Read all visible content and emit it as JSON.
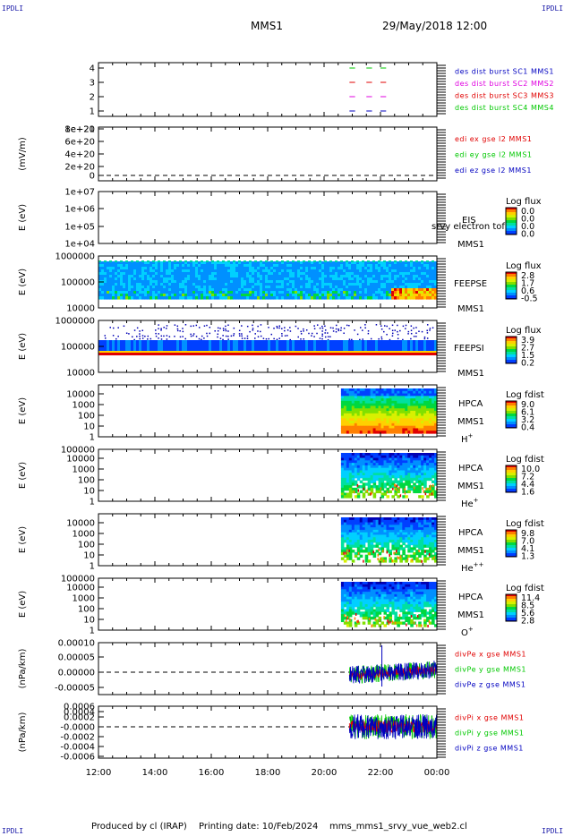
{
  "corner_label": "IPDLI",
  "header": {
    "spacecraft": "MMS1",
    "date": "29/May/2018 12:00"
  },
  "footer": {
    "produced_by": "Produced by cl (IRAP)",
    "printing_date": "Printing date: 10/Feb/2024",
    "product": "mms_mms1_srvy_vue_web2.cl"
  },
  "colors": {
    "red": "#e00000",
    "green": "#00c800",
    "blue": "#0000c0",
    "magenta": "#e000e0",
    "black": "#000000"
  },
  "chart_data": [
    {
      "type": "line",
      "panel": "dist_burst",
      "ylabel": "",
      "y_ticks": [
        "1",
        "2",
        "3",
        "4"
      ],
      "ylim": [
        0.5,
        4.5
      ],
      "legend": [
        {
          "text": "des dist burst SC1 MMS1",
          "color": "#0000c0"
        },
        {
          "text": "des dist burst SC2 MMS2",
          "color": "#e000e0"
        },
        {
          "text": "des dist burst SC3 MMS3",
          "color": "#e00000"
        },
        {
          "text": "des dist burst SC4 MMS4",
          "color": "#00c800"
        }
      ],
      "series": [
        {
          "name": "SC1 MMS1",
          "y": 1,
          "color": "#0000c0",
          "segments": [
            [
              20.9,
              21.1
            ],
            [
              21.5,
              21.7
            ],
            [
              22.0,
              22.2
            ]
          ]
        },
        {
          "name": "SC2 MMS2",
          "y": 2,
          "color": "#e000e0",
          "segments": [
            [
              20.9,
              21.1
            ],
            [
              21.5,
              21.7
            ],
            [
              22.0,
              22.2
            ]
          ]
        },
        {
          "name": "SC3 MMS3",
          "y": 3,
          "color": "#e00000",
          "segments": [
            [
              20.9,
              21.1
            ],
            [
              21.5,
              21.7
            ],
            [
              22.0,
              22.2
            ]
          ]
        },
        {
          "name": "SC4 MMS4",
          "y": 4,
          "color": "#00c800",
          "segments": [
            [
              20.9,
              21.1
            ],
            [
              21.5,
              21.7
            ],
            [
              22.0,
              22.2
            ]
          ]
        }
      ]
    },
    {
      "type": "line",
      "panel": "edi",
      "ylabel": "(mV/m)",
      "y_ticks": [
        "0",
        "2e+20",
        "4e+20",
        "6e+20",
        "8e+20",
        "1e+21"
      ],
      "ylim": [
        0,
        1e+21
      ],
      "legend": [
        {
          "text": "edi ex gse l2 MMS1",
          "color": "#e00000"
        },
        {
          "text": "edi ey gse l2 MMS1",
          "color": "#00c800"
        },
        {
          "text": "edi ez gse l2 MMS1",
          "color": "#0000c0"
        }
      ],
      "zero_line": true
    },
    {
      "type": "heatmap",
      "panel": "eis",
      "ylabel": "E (eV)",
      "y_ticks": [
        "1e+04",
        "1e+05",
        "1e+06",
        "1e+07"
      ],
      "instrument": [
        "EIS",
        "srvy electron tof",
        "MMS1"
      ],
      "colorbar": {
        "label": "Log flux",
        "ticks": [
          "0.0",
          "0.0",
          "0.0",
          "0.0"
        ]
      },
      "data_span": null
    },
    {
      "type": "heatmap",
      "panel": "feeps_e",
      "ylabel": "E (eV)",
      "y_ticks": [
        "10000",
        "100000",
        "1000000"
      ],
      "instrument": [
        "FEEPSE",
        "MMS1"
      ],
      "colorbar": {
        "label": "Log flux",
        "ticks": [
          "2.8",
          "1.7",
          "0.6",
          "-0.5"
        ]
      },
      "data_span": [
        12,
        24
      ]
    },
    {
      "type": "heatmap",
      "panel": "feeps_i",
      "ylabel": "E (eV)",
      "y_ticks": [
        "10000",
        "100000",
        "1000000"
      ],
      "instrument": [
        "FEEPSI",
        "MMS1"
      ],
      "colorbar": {
        "label": "Log flux",
        "ticks": [
          "3.9",
          "2.7",
          "1.5",
          "0.2"
        ]
      },
      "data_span": [
        12,
        24
      ]
    },
    {
      "type": "heatmap",
      "panel": "hpca_h",
      "ylabel": "E (eV)",
      "y_ticks": [
        "1",
        "10",
        "100",
        "1000",
        "10000"
      ],
      "instrument": [
        "HPCA",
        "MMS1"
      ],
      "species": "H",
      "charge": "+",
      "colorbar": {
        "label": "Log fdist",
        "ticks": [
          "9.0",
          "6.1",
          "3.2",
          "0.4"
        ]
      },
      "data_span": [
        20.6,
        24
      ]
    },
    {
      "type": "heatmap",
      "panel": "hpca_he1",
      "ylabel": "E (eV)",
      "y_ticks": [
        "1",
        "10",
        "100",
        "1000",
        "10000",
        "100000"
      ],
      "instrument": [
        "HPCA",
        "MMS1"
      ],
      "species": "He",
      "charge": "+",
      "colorbar": {
        "label": "Log fdist",
        "ticks": [
          "10.0",
          "7.2",
          "4.4",
          "1.6"
        ]
      },
      "data_span": [
        20.6,
        24
      ]
    },
    {
      "type": "heatmap",
      "panel": "hpca_he2",
      "ylabel": "E (eV)",
      "y_ticks": [
        "1",
        "10",
        "100",
        "1000",
        "10000"
      ],
      "instrument": [
        "HPCA",
        "MMS1"
      ],
      "species": "He",
      "charge": "++",
      "colorbar": {
        "label": "Log fdist",
        "ticks": [
          "9.8",
          "7.0",
          "4.1",
          "1.3"
        ]
      },
      "data_span": [
        20.6,
        24
      ]
    },
    {
      "type": "heatmap",
      "panel": "hpca_o",
      "ylabel": "E (eV)",
      "y_ticks": [
        "1",
        "10",
        "100",
        "1000",
        "10000",
        "100000"
      ],
      "instrument": [
        "HPCA",
        "MMS1"
      ],
      "species": "O",
      "charge": "+",
      "colorbar": {
        "label": "Log fdist",
        "ticks": [
          "11.4",
          "8.5",
          "5.6",
          "2.8"
        ]
      },
      "data_span": [
        20.6,
        24
      ]
    },
    {
      "type": "line",
      "panel": "divpe",
      "ylabel": "(nPa/km)",
      "y_ticks": [
        "-0.00005",
        "0.00000",
        "0.00005",
        "0.00010"
      ],
      "ylim": [
        -8e-05,
        0.0001
      ],
      "legend": [
        {
          "text": "divPe x gse MMS1",
          "color": "#e00000"
        },
        {
          "text": "divPe y gse MMS1",
          "color": "#00c800"
        },
        {
          "text": "divPe z gse MMS1",
          "color": "#0000c0"
        }
      ],
      "zero_line": true,
      "data_span": [
        20.9,
        24
      ]
    },
    {
      "type": "line",
      "panel": "divpi",
      "ylabel": "(nPa/km)",
      "y_ticks": [
        "-0.0006",
        "-0.0004",
        "-0.0002",
        "-0.0000",
        "0.0002",
        "0.0004",
        "0.0006"
      ],
      "ylim": [
        -0.0006,
        0.0006
      ],
      "legend": [
        {
          "text": "divPi x gse MMS1",
          "color": "#e00000"
        },
        {
          "text": "divPi y gse MMS1",
          "color": "#00c800"
        },
        {
          "text": "divPi z gse MMS1",
          "color": "#0000c0"
        }
      ],
      "zero_line": true,
      "data_span": [
        20.9,
        24
      ]
    }
  ],
  "x_axis": {
    "ticks": [
      "12:00",
      "14:00",
      "16:00",
      "18:00",
      "20:00",
      "22:00",
      "00:00"
    ],
    "range_hours": [
      12,
      24
    ]
  }
}
